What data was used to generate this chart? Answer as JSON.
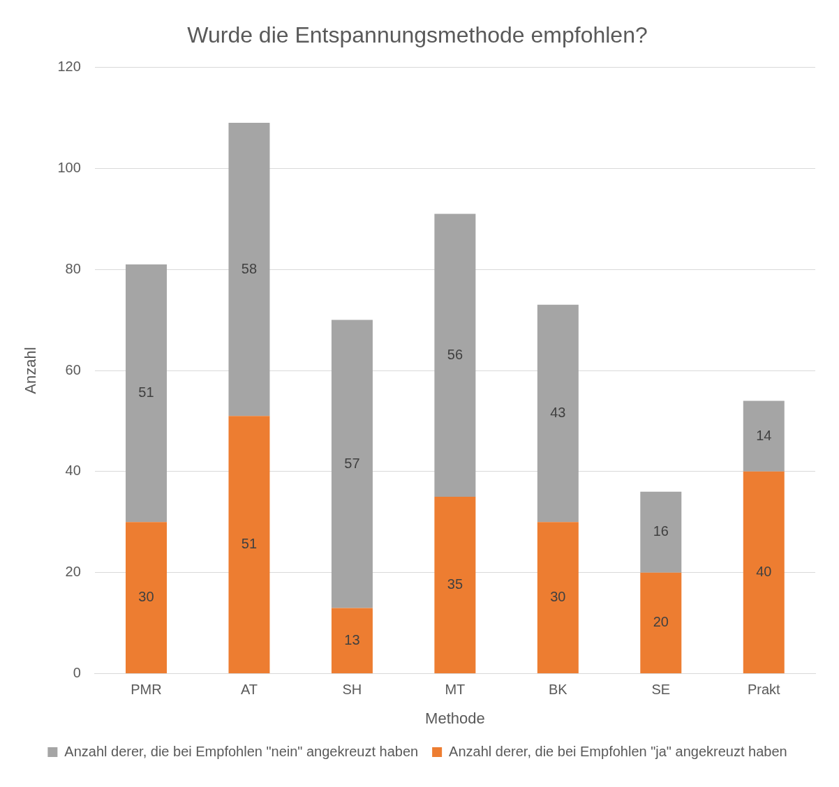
{
  "chart_data": {
    "type": "bar",
    "title": "Wurde die Entspannungsmethode empfohlen?",
    "xlabel": "Methode",
    "ylabel": "Anzahl",
    "categories": [
      "PMR",
      "AT",
      "SH",
      "MT",
      "BK",
      "SE",
      "Prakt"
    ],
    "series": [
      {
        "name": "Anzahl derer, die bei Empfohlen \"ja\" angekreuzt haben",
        "color": "#ed7d31",
        "values": [
          30,
          51,
          13,
          35,
          30,
          20,
          40
        ]
      },
      {
        "name": "Anzahl derer, die bei Empfohlen \"nein\" angekreuzt haben",
        "color": "#a5a5a5",
        "values": [
          51,
          58,
          57,
          56,
          43,
          16,
          14
        ]
      }
    ],
    "stacked": true,
    "ylim": [
      0,
      120
    ],
    "yticks": [
      0,
      20,
      40,
      60,
      80,
      100,
      120
    ],
    "grid": "y",
    "legend": "bottom",
    "data_labels": true
  }
}
